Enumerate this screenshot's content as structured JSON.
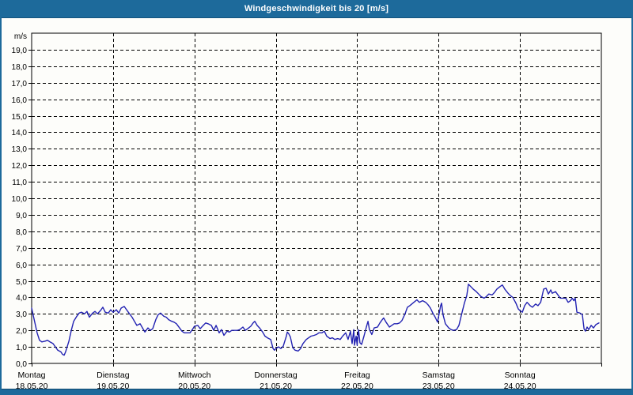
{
  "window": {
    "title": "Windgeschwindigkeit bis 20 [m/s]"
  },
  "colors": {
    "titlebar_bg": "#1d6a9b",
    "titlebar_text": "#ffffff",
    "content_bg": "#fdfdfa",
    "axis": "#000000",
    "grid": "#000000",
    "line": "#2222b2"
  },
  "chart_data": {
    "type": "line",
    "title": "Windgeschwindigkeit bis 20 [m/s]",
    "y_unit_label": "m/s",
    "ylabel": "",
    "xlabel": "",
    "ylim": [
      0,
      20
    ],
    "y_tick_step": 1,
    "grid": "dashed",
    "legend_position": "none",
    "x_total_hours": 168,
    "y_tick_labels": [
      "0,0",
      "1,0",
      "2,0",
      "3,0",
      "4,0",
      "5,0",
      "6,0",
      "7,0",
      "8,0",
      "9,0",
      "10,0",
      "11,0",
      "12,0",
      "13,0",
      "14,0",
      "15,0",
      "16,0",
      "17,0",
      "18,0",
      "19,0"
    ],
    "days": [
      {
        "name": "Montag",
        "date": "18.05.20"
      },
      {
        "name": "Dienstag",
        "date": "19.05.20"
      },
      {
        "name": "Mittwoch",
        "date": "20.05.20"
      },
      {
        "name": "Donnerstag",
        "date": "21.05.20"
      },
      {
        "name": "Freitag",
        "date": "22.05.20"
      },
      {
        "name": "Samstag",
        "date": "23.05.20"
      },
      {
        "name": "Sonntag",
        "date": "24.05.20"
      }
    ],
    "series": [
      {
        "name": "Windgeschwindigkeit [m/s]",
        "color": "#2222b2",
        "points": [
          [
            0,
            3.35
          ],
          [
            0.7,
            2.7
          ],
          [
            1.6,
            1.85
          ],
          [
            2.3,
            1.4
          ],
          [
            3,
            1.3
          ],
          [
            4,
            1.35
          ],
          [
            4.7,
            1.4
          ],
          [
            5.4,
            1.3
          ],
          [
            6.3,
            1.2
          ],
          [
            7,
            1
          ],
          [
            7.7,
            0.8
          ],
          [
            8.6,
            0.7
          ],
          [
            9.1,
            0.55
          ],
          [
            9.6,
            0.5
          ],
          [
            10,
            0.7
          ],
          [
            11,
            1.35
          ],
          [
            11.7,
            2
          ],
          [
            12.4,
            2.55
          ],
          [
            13.3,
            2.85
          ],
          [
            14,
            3.05
          ],
          [
            14.7,
            3.1
          ],
          [
            15.6,
            3
          ],
          [
            16.3,
            3.15
          ],
          [
            17,
            2.8
          ],
          [
            18,
            3.05
          ],
          [
            18.7,
            3.15
          ],
          [
            19.4,
            3
          ],
          [
            20.3,
            3.2
          ],
          [
            21,
            3.4
          ],
          [
            21.7,
            3.1
          ],
          [
            22.6,
            3.05
          ],
          [
            23.3,
            3.25
          ],
          [
            24,
            3.1
          ],
          [
            25,
            3.25
          ],
          [
            25.7,
            3.05
          ],
          [
            26.4,
            3.35
          ],
          [
            27.3,
            3.45
          ],
          [
            28,
            3.25
          ],
          [
            28.7,
            3.05
          ],
          [
            29.6,
            2.8
          ],
          [
            30.3,
            2.55
          ],
          [
            31,
            2.3
          ],
          [
            32,
            2.4
          ],
          [
            32.7,
            2.15
          ],
          [
            33.4,
            1.9
          ],
          [
            34.3,
            2.15
          ],
          [
            35,
            2
          ],
          [
            35.7,
            2.1
          ],
          [
            36.6,
            2.65
          ],
          [
            37.3,
            2.95
          ],
          [
            38,
            3.05
          ],
          [
            39,
            2.85
          ],
          [
            39.7,
            2.8
          ],
          [
            40.4,
            2.65
          ],
          [
            41.3,
            2.55
          ],
          [
            42,
            2.5
          ],
          [
            42.7,
            2.4
          ],
          [
            43.6,
            2.15
          ],
          [
            44.3,
            1.95
          ],
          [
            45,
            1.85
          ],
          [
            46,
            1.85
          ],
          [
            46.7,
            1.85
          ],
          [
            47.4,
            2.05
          ],
          [
            48,
            2.25
          ],
          [
            49,
            2.3
          ],
          [
            49.7,
            2.1
          ],
          [
            50.6,
            2.3
          ],
          [
            51.3,
            2.45
          ],
          [
            52,
            2.4
          ],
          [
            53,
            2.3
          ],
          [
            53.7,
            2
          ],
          [
            54.4,
            2.3
          ],
          [
            55.3,
            1.85
          ],
          [
            56,
            2.05
          ],
          [
            56.7,
            1.7
          ],
          [
            57.6,
            1.95
          ],
          [
            58.3,
            1.9
          ],
          [
            59,
            2
          ],
          [
            60.7,
            2
          ],
          [
            61.4,
            2.05
          ],
          [
            62.3,
            2.2
          ],
          [
            63,
            2
          ],
          [
            63.7,
            2.1
          ],
          [
            64.6,
            2.25
          ],
          [
            65.3,
            2.45
          ],
          [
            65.8,
            2.55
          ],
          [
            66.5,
            2.3
          ],
          [
            67.2,
            2.15
          ],
          [
            68.1,
            1.9
          ],
          [
            68.8,
            1.65
          ],
          [
            69.5,
            1.55
          ],
          [
            70.5,
            1.45
          ],
          [
            71.2,
            0.9
          ],
          [
            71.6,
            0.8
          ],
          [
            72,
            0.9
          ],
          [
            72.8,
            1
          ],
          [
            73.5,
            0.9
          ],
          [
            74.2,
            1.05
          ],
          [
            75.1,
            1.65
          ],
          [
            75.4,
            1.9
          ],
          [
            75.8,
            1.8
          ],
          [
            76.3,
            1.6
          ],
          [
            77,
            0.95
          ],
          [
            77.7,
            0.8
          ],
          [
            78.6,
            0.75
          ],
          [
            79.3,
            0.9
          ],
          [
            80,
            1.2
          ],
          [
            81,
            1.45
          ],
          [
            81.7,
            1.55
          ],
          [
            82.4,
            1.65
          ],
          [
            83.3,
            1.7
          ],
          [
            84,
            1.75
          ],
          [
            84.7,
            1.85
          ],
          [
            85.6,
            1.85
          ],
          [
            86.3,
            1.95
          ],
          [
            87,
            1.65
          ],
          [
            88,
            1.5
          ],
          [
            88.7,
            1.55
          ],
          [
            89.4,
            1.45
          ],
          [
            90.3,
            1.5
          ],
          [
            91,
            1.45
          ],
          [
            91.7,
            1.65
          ],
          [
            92.6,
            1.85
          ],
          [
            93.3,
            1.45
          ],
          [
            94,
            1.95
          ],
          [
            94.5,
            1.2
          ],
          [
            95,
            2.05
          ],
          [
            95.2,
            1.1
          ],
          [
            95.7,
            1.65
          ],
          [
            96,
            1.1
          ],
          [
            96.4,
            2.05
          ],
          [
            96.8,
            1.25
          ],
          [
            97.3,
            1.15
          ],
          [
            98,
            1.65
          ],
          [
            98.7,
            2.2
          ],
          [
            99.2,
            2.55
          ],
          [
            99.6,
            2.05
          ],
          [
            100.3,
            1.75
          ],
          [
            101,
            2.15
          ],
          [
            102,
            2.2
          ],
          [
            102.7,
            2.45
          ],
          [
            103.4,
            2.65
          ],
          [
            103.8,
            2.75
          ],
          [
            104.5,
            2.5
          ],
          [
            105.5,
            2.2
          ],
          [
            106.2,
            2.3
          ],
          [
            106.9,
            2.4
          ],
          [
            107.8,
            2.4
          ],
          [
            108.5,
            2.45
          ],
          [
            109.2,
            2.6
          ],
          [
            110.1,
            3
          ],
          [
            110.8,
            3.4
          ],
          [
            111.5,
            3.5
          ],
          [
            112.7,
            3.7
          ],
          [
            113.6,
            3.85
          ],
          [
            114.3,
            3.7
          ],
          [
            115.3,
            3.8
          ],
          [
            116.2,
            3.7
          ],
          [
            116.9,
            3.55
          ],
          [
            117.6,
            3.35
          ],
          [
            118.3,
            3.05
          ],
          [
            119,
            2.8
          ],
          [
            119.7,
            2.5
          ],
          [
            120.6,
            3.5
          ],
          [
            120.9,
            3.65
          ],
          [
            121.3,
            2.95
          ],
          [
            122,
            2.4
          ],
          [
            123,
            2.15
          ],
          [
            123.7,
            2.05
          ],
          [
            124.4,
            2
          ],
          [
            125.3,
            2.05
          ],
          [
            126,
            2.3
          ],
          [
            126.7,
            2.9
          ],
          [
            127.6,
            3.65
          ],
          [
            128.3,
            4.1
          ],
          [
            128.8,
            4.8
          ],
          [
            129.5,
            4.65
          ],
          [
            130.2,
            4.5
          ],
          [
            131.1,
            4.35
          ],
          [
            131.8,
            4.2
          ],
          [
            132.5,
            4.05
          ],
          [
            133.4,
            3.95
          ],
          [
            134.1,
            4.05
          ],
          [
            134.8,
            4.2
          ],
          [
            135.8,
            4.15
          ],
          [
            136.5,
            4.3
          ],
          [
            137.2,
            4.5
          ],
          [
            138.1,
            4.65
          ],
          [
            138.8,
            4.75
          ],
          [
            139.5,
            4.5
          ],
          [
            140.5,
            4.25
          ],
          [
            141.2,
            4.1
          ],
          [
            141.9,
            4
          ],
          [
            142.8,
            3.65
          ],
          [
            143.5,
            3.3
          ],
          [
            144,
            3.2
          ],
          [
            144.7,
            3.1
          ],
          [
            145.4,
            3.5
          ],
          [
            146.1,
            3.7
          ],
          [
            147,
            3.5
          ],
          [
            147.7,
            3.4
          ],
          [
            148.6,
            3.6
          ],
          [
            149.3,
            3.5
          ],
          [
            150.1,
            3.7
          ],
          [
            151,
            4.5
          ],
          [
            151.7,
            4.55
          ],
          [
            152.4,
            4.2
          ],
          [
            153.1,
            4.45
          ],
          [
            153.5,
            4.25
          ],
          [
            154.5,
            4.35
          ],
          [
            155.2,
            4.15
          ],
          [
            155.9,
            3.95
          ],
          [
            156.8,
            3.95
          ],
          [
            157.5,
            3.95
          ],
          [
            158.2,
            3.7
          ],
          [
            158.9,
            3.8
          ],
          [
            159.4,
            3.95
          ],
          [
            159.9,
            3.8
          ],
          [
            160.3,
            3.95
          ],
          [
            160.8,
            3.1
          ],
          [
            161.7,
            3.05
          ],
          [
            162.4,
            2.95
          ],
          [
            162.9,
            2.1
          ],
          [
            163.3,
            1.95
          ],
          [
            163.8,
            2.2
          ],
          [
            164.3,
            2.05
          ],
          [
            165,
            2.3
          ],
          [
            165.7,
            2.15
          ],
          [
            166.4,
            2.35
          ],
          [
            167.3,
            2.45
          ]
        ]
      }
    ]
  }
}
